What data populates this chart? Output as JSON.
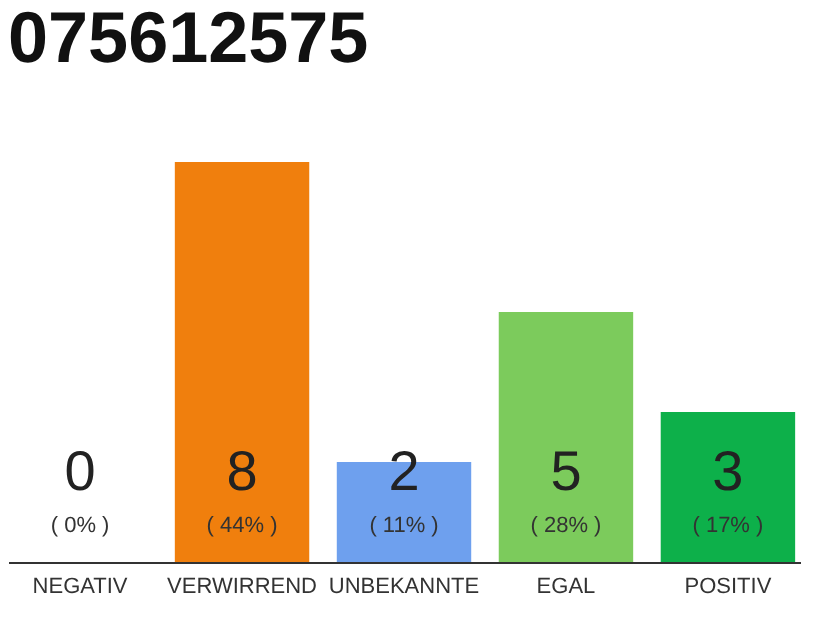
{
  "chart_data": {
    "type": "bar",
    "title": "075612575",
    "categories": [
      "NEGATIV",
      "VERWIRREND",
      "UNBEKANNTE",
      "EGAL",
      "POSITIV"
    ],
    "values": [
      0,
      8,
      2,
      5,
      3
    ],
    "colors": [
      "#e0413a",
      "#f07f0d",
      "#6ea0ee",
      "#7ccb5c",
      "#0db04a"
    ],
    "data_labels": true,
    "annotations": [
      "( 0% )",
      "( 44% )",
      "( 11% )",
      "( 28% )",
      "( 17% )"
    ]
  }
}
